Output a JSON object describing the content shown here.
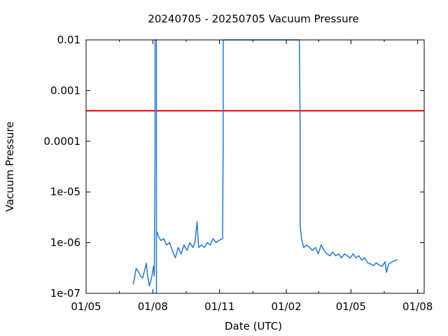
{
  "chart_data": {
    "type": "line",
    "title": "20240705 - 20250705 Vacuum Pressure",
    "xlabel": "Date (UTC)",
    "ylabel": "Vacuum Pressure",
    "x_scale": "date",
    "y_scale": "log",
    "xlim": [
      "2024-05-01",
      "2025-08-10"
    ],
    "ylim": [
      1e-07,
      0.01
    ],
    "x_ticks": [
      {
        "date": "2024-05-01",
        "label": "01/05"
      },
      {
        "date": "2024-08-01",
        "label": "01/08"
      },
      {
        "date": "2024-11-01",
        "label": "01/11"
      },
      {
        "date": "2025-02-01",
        "label": "01/02"
      },
      {
        "date": "2025-05-01",
        "label": "01/05"
      },
      {
        "date": "2025-08-01",
        "label": "01/08"
      }
    ],
    "y_ticks": [
      {
        "value": 1e-07,
        "label": "1e-07"
      },
      {
        "value": 1e-06,
        "label": "1e-06"
      },
      {
        "value": 1e-05,
        "label": "1e-05"
      },
      {
        "value": 0.0001,
        "label": "0.0001"
      },
      {
        "value": 0.001,
        "label": "0.001"
      },
      {
        "value": 0.01,
        "label": "0.01"
      }
    ],
    "grid": false,
    "legend": "none",
    "colors": {
      "series": "#1f78e0",
      "threshold": "#e8000b"
    },
    "threshold": {
      "value": 0.0004
    },
    "series": [
      {
        "points": [
          [
            "2024-07-05",
            1.5e-07
          ],
          [
            "2024-07-07",
            2.1e-07
          ],
          [
            "2024-07-09",
            3.1e-07
          ],
          [
            "2024-07-12",
            2.7e-07
          ],
          [
            "2024-07-15",
            2.2e-07
          ],
          [
            "2024-07-18",
            2e-07
          ],
          [
            "2024-07-21",
            3e-07
          ],
          [
            "2024-07-23",
            3.9e-07
          ],
          [
            "2024-07-25",
            2.1e-07
          ],
          [
            "2024-07-27",
            1.4e-07
          ],
          [
            "2024-07-29",
            1.7e-07
          ],
          [
            "2024-07-31",
            2.3e-07
          ],
          [
            "2024-08-02",
            3.4e-07
          ],
          [
            "2024-08-03",
            2.2e-07
          ],
          [
            "2024-08-04",
            5e-05
          ],
          [
            "2024-08-04",
            0.01
          ],
          [
            "2024-08-06",
            0.01
          ],
          [
            "2024-08-06",
            1e-07
          ],
          [
            "2024-08-06",
            1.7e-06
          ],
          [
            "2024-08-09",
            1.3e-06
          ],
          [
            "2024-08-12",
            1.1e-06
          ],
          [
            "2024-08-16",
            1.2e-06
          ],
          [
            "2024-08-20",
            9e-07
          ],
          [
            "2024-08-24",
            1e-06
          ],
          [
            "2024-08-28",
            7e-07
          ],
          [
            "2024-09-01",
            5e-07
          ],
          [
            "2024-09-05",
            8e-07
          ],
          [
            "2024-09-09",
            6e-07
          ],
          [
            "2024-09-13",
            9e-07
          ],
          [
            "2024-09-17",
            7e-07
          ],
          [
            "2024-09-21",
            1e-06
          ],
          [
            "2024-09-25",
            8e-07
          ],
          [
            "2024-09-28",
            1e-06
          ],
          [
            "2024-10-01",
            2.6e-06
          ],
          [
            "2024-10-03",
            8e-07
          ],
          [
            "2024-10-07",
            9e-07
          ],
          [
            "2024-10-11",
            8e-07
          ],
          [
            "2024-10-15",
            1e-06
          ],
          [
            "2024-10-19",
            9e-07
          ],
          [
            "2024-10-23",
            1.2e-06
          ],
          [
            "2024-10-27",
            1e-06
          ],
          [
            "2024-10-31",
            1.1e-06
          ],
          [
            "2024-11-05",
            1.2e-06
          ],
          [
            "2024-11-06",
            0.0001
          ],
          [
            "2024-11-06",
            0.01
          ],
          [
            "2025-02-19",
            0.01
          ],
          [
            "2025-02-20",
            0.00018
          ],
          [
            "2025-02-20",
            2.1e-06
          ],
          [
            "2025-02-22",
            1.2e-06
          ],
          [
            "2025-02-25",
            8e-07
          ],
          [
            "2025-03-01",
            9e-07
          ],
          [
            "2025-03-05",
            8e-07
          ],
          [
            "2025-03-09",
            7e-07
          ],
          [
            "2025-03-13",
            8e-07
          ],
          [
            "2025-03-17",
            6e-07
          ],
          [
            "2025-03-21",
            9e-07
          ],
          [
            "2025-03-25",
            7e-07
          ],
          [
            "2025-03-29",
            6e-07
          ],
          [
            "2025-04-02",
            5.5e-07
          ],
          [
            "2025-04-06",
            6.5e-07
          ],
          [
            "2025-04-10",
            5.5e-07
          ],
          [
            "2025-04-14",
            6e-07
          ],
          [
            "2025-04-18",
            5e-07
          ],
          [
            "2025-04-22",
            6e-07
          ],
          [
            "2025-04-26",
            5.5e-07
          ],
          [
            "2025-04-30",
            5e-07
          ],
          [
            "2025-05-04",
            6e-07
          ],
          [
            "2025-05-08",
            5e-07
          ],
          [
            "2025-05-12",
            5.5e-07
          ],
          [
            "2025-05-16",
            4.5e-07
          ],
          [
            "2025-05-20",
            5e-07
          ],
          [
            "2025-05-24",
            4e-07
          ],
          [
            "2025-05-28",
            3.8e-07
          ],
          [
            "2025-06-01",
            3.5e-07
          ],
          [
            "2025-06-05",
            4e-07
          ],
          [
            "2025-06-09",
            3.6e-07
          ],
          [
            "2025-06-13",
            3.4e-07
          ],
          [
            "2025-06-17",
            4.2e-07
          ],
          [
            "2025-06-19",
            2.6e-07
          ],
          [
            "2025-06-22",
            3.8e-07
          ],
          [
            "2025-06-26",
            4.1e-07
          ],
          [
            "2025-06-30",
            4.4e-07
          ],
          [
            "2025-07-04",
            4.6e-07
          ]
        ]
      }
    ]
  }
}
